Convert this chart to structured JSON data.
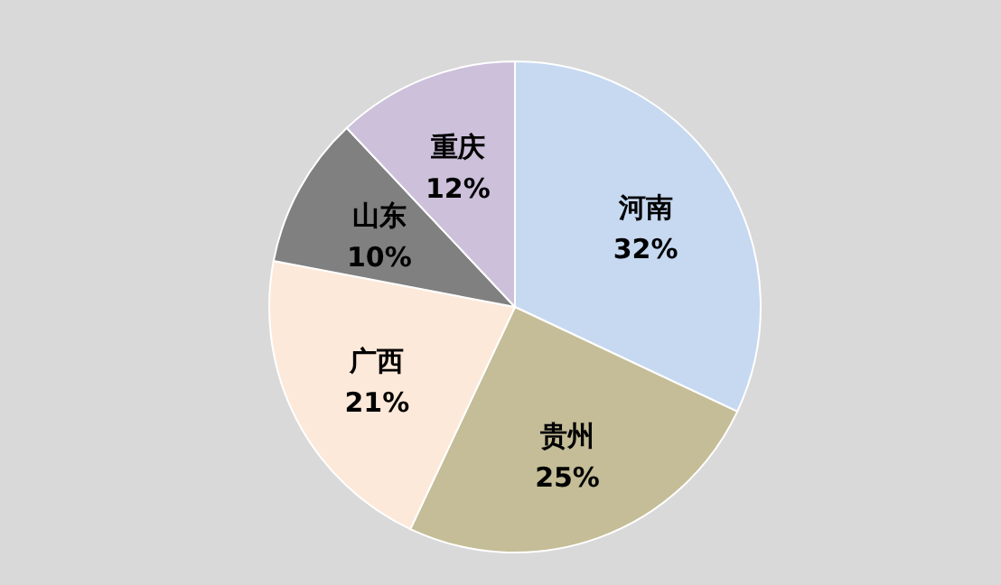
{
  "chart_data": {
    "type": "pie",
    "categories": [
      "河南",
      "贵州",
      "广西",
      "山东",
      "重庆"
    ],
    "values": [
      32,
      25,
      21,
      10,
      12
    ],
    "colors": [
      "#c6d9f1",
      "#c4bd97",
      "#fde9d9",
      "#808080",
      "#ccc0da"
    ],
    "value_labels": [
      "32%",
      "25%",
      "21%",
      "10%",
      "12%"
    ]
  }
}
